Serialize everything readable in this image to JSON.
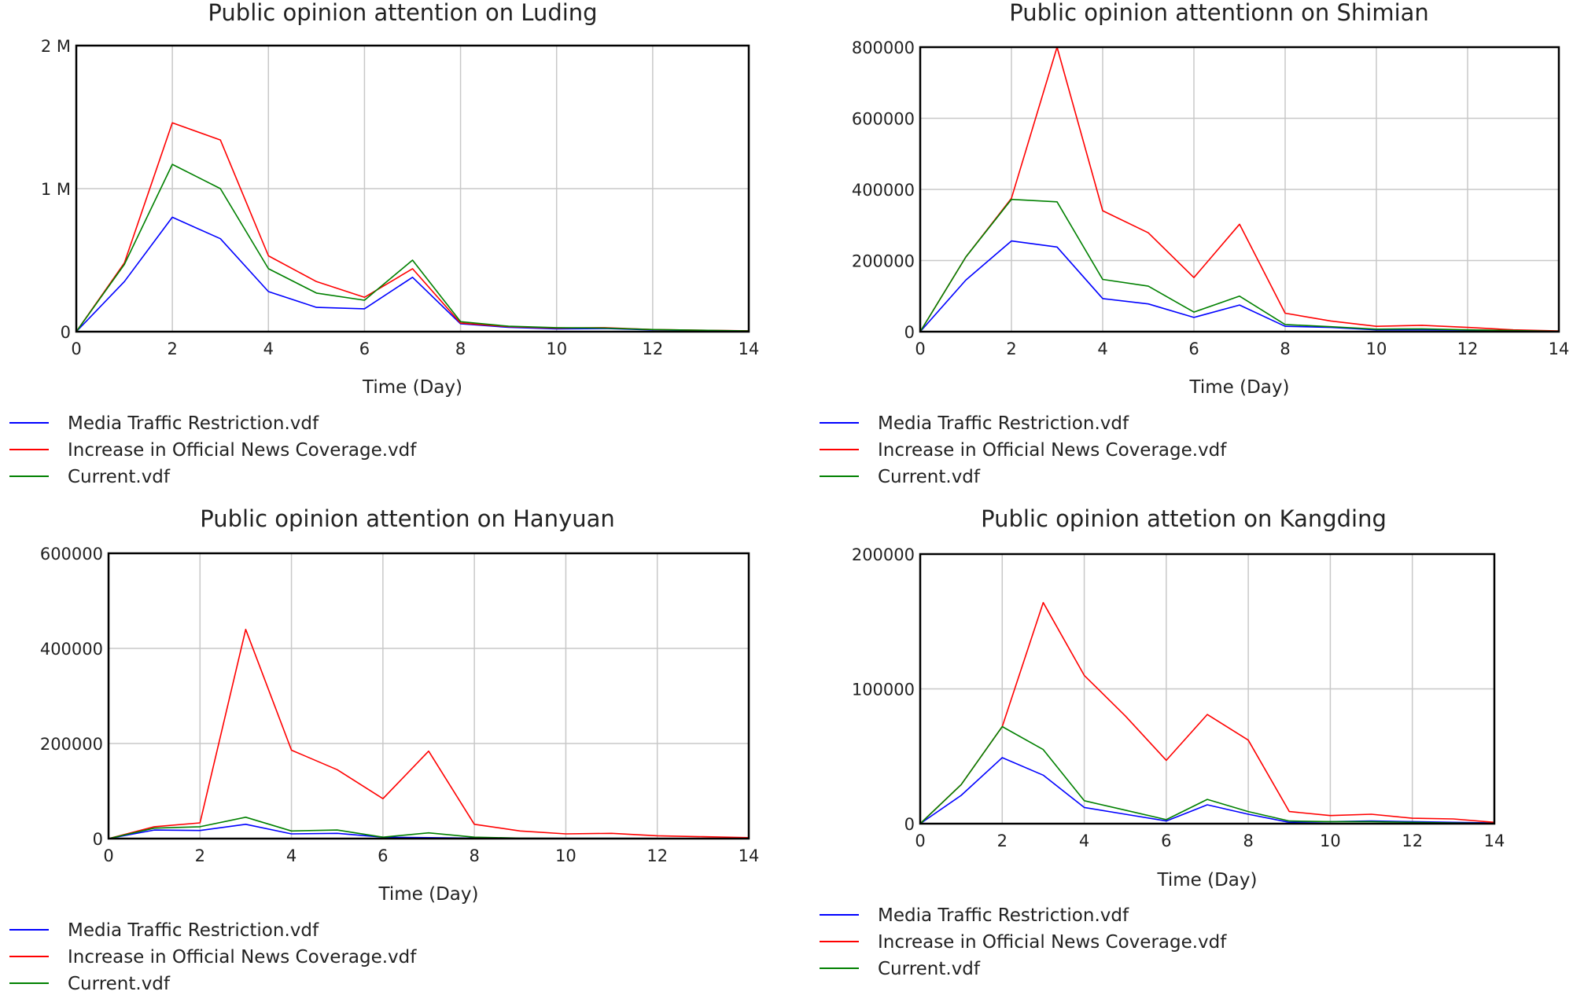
{
  "colors": {
    "media": "#0000ff",
    "news": "#ff0000",
    "current": "#008000"
  },
  "legend": {
    "items": [
      {
        "key": "media",
        "label": "Media Traffic Restriction.vdf"
      },
      {
        "key": "news",
        "label": "Increase in Official News Coverage.vdf"
      },
      {
        "key": "current",
        "label": "Current.vdf"
      }
    ]
  },
  "chart_data": [
    {
      "type": "line",
      "title": "Public opinion attention on Luding",
      "xlabel": "Time (Day)",
      "ylabel": "",
      "xlim": [
        0,
        14
      ],
      "ylim": [
        0,
        2000000
      ],
      "x_ticks": [
        0,
        2,
        4,
        6,
        8,
        10,
        12,
        14
      ],
      "y_ticks": [
        0,
        1000000,
        2000000
      ],
      "y_tick_labels": [
        "0",
        "1 M",
        "2 M"
      ],
      "x": [
        0,
        1,
        2,
        3,
        4,
        5,
        6,
        7,
        8,
        9,
        10,
        11,
        12,
        13,
        14
      ],
      "grid": true,
      "legend_position": "bottom-left",
      "series": [
        {
          "name": "Media Traffic Restriction.vdf",
          "key": "media",
          "values": [
            0,
            350000,
            800000,
            650000,
            280000,
            170000,
            160000,
            380000,
            55000,
            30000,
            20000,
            22000,
            12000,
            8000,
            4000
          ]
        },
        {
          "name": "Increase in Official News Coverage.vdf",
          "key": "news",
          "values": [
            0,
            480000,
            1460000,
            1340000,
            530000,
            350000,
            240000,
            440000,
            60000,
            35000,
            25000,
            28000,
            15000,
            10000,
            6000
          ]
        },
        {
          "name": "Current.vdf",
          "key": "current",
          "values": [
            0,
            470000,
            1170000,
            1000000,
            440000,
            270000,
            220000,
            500000,
            70000,
            38000,
            28000,
            25000,
            15000,
            10000,
            5000
          ]
        }
      ]
    },
    {
      "type": "line",
      "title": "Public opinion attentionn on Shimian",
      "xlabel": "Time (Day)",
      "ylabel": "",
      "xlim": [
        0,
        14
      ],
      "ylim": [
        0,
        800000
      ],
      "x_ticks": [
        0,
        2,
        4,
        6,
        8,
        10,
        12,
        14
      ],
      "y_ticks": [
        0,
        200000,
        400000,
        600000,
        800000
      ],
      "y_tick_labels": [
        "0",
        "200000",
        "400000",
        "600000",
        "800000"
      ],
      "x": [
        0,
        1,
        2,
        3,
        4,
        5,
        6,
        7,
        8,
        9,
        10,
        11,
        12,
        13,
        14
      ],
      "grid": true,
      "legend_position": "bottom-left",
      "series": [
        {
          "name": "Media Traffic Restriction.vdf",
          "key": "media",
          "values": [
            0,
            145000,
            255000,
            238000,
            93000,
            78000,
            40000,
            75000,
            15000,
            12000,
            5000,
            5000,
            4000,
            2000,
            1000
          ]
        },
        {
          "name": "Increase in Official News Coverage.vdf",
          "key": "news",
          "values": [
            0,
            210000,
            375000,
            800000,
            340000,
            278000,
            152000,
            302000,
            52000,
            30000,
            15000,
            18000,
            12000,
            5000,
            2000
          ]
        },
        {
          "name": "Current.vdf",
          "key": "current",
          "values": [
            0,
            210000,
            372000,
            365000,
            147000,
            128000,
            55000,
            100000,
            20000,
            14000,
            7000,
            8000,
            5000,
            3000,
            1000
          ]
        }
      ]
    },
    {
      "type": "line",
      "title": "Public opinion attention on Hanyuan",
      "xlabel": "Time (Day)",
      "ylabel": "",
      "xlim": [
        0,
        14
      ],
      "ylim": [
        0,
        600000
      ],
      "x_ticks": [
        0,
        2,
        4,
        6,
        8,
        10,
        12,
        14
      ],
      "y_ticks": [
        0,
        200000,
        400000,
        600000
      ],
      "y_tick_labels": [
        "0",
        "200000",
        "400000",
        "600000"
      ],
      "x": [
        0,
        1,
        2,
        3,
        4,
        5,
        6,
        7,
        8,
        9,
        10,
        11,
        12,
        13,
        14
      ],
      "grid": true,
      "legend_position": "bottom-left",
      "series": [
        {
          "name": "Media Traffic Restriction.vdf",
          "key": "media",
          "values": [
            0,
            18000,
            17000,
            30000,
            10000,
            11000,
            3000,
            2000,
            1000,
            500,
            500,
            500,
            300,
            200,
            100
          ]
        },
        {
          "name": "Increase in Official News Coverage.vdf",
          "key": "news",
          "values": [
            0,
            25000,
            33000,
            440000,
            186000,
            145000,
            84000,
            184000,
            30000,
            16000,
            10000,
            11000,
            6000,
            4000,
            2000
          ]
        },
        {
          "name": "Current.vdf",
          "key": "current",
          "values": [
            0,
            22000,
            25000,
            45000,
            16000,
            18000,
            3000,
            12000,
            3000,
            1000,
            500,
            500,
            300,
            200,
            100
          ]
        }
      ]
    },
    {
      "type": "line",
      "title": "Public opinion attetion on Kangding",
      "xlabel": "Time (Day)",
      "ylabel": "",
      "xlim": [
        0,
        14
      ],
      "ylim": [
        0,
        200000
      ],
      "x_ticks": [
        0,
        2,
        4,
        6,
        8,
        10,
        12,
        14
      ],
      "y_ticks": [
        0,
        100000,
        200000
      ],
      "y_tick_labels": [
        "0",
        "100000",
        "200000"
      ],
      "x": [
        0,
        1,
        2,
        3,
        4,
        5,
        6,
        7,
        8,
        9,
        10,
        11,
        12,
        13,
        14
      ],
      "grid": true,
      "legend_position": "bottom-left",
      "series": [
        {
          "name": "Media Traffic Restriction.vdf",
          "key": "media",
          "values": [
            0,
            21000,
            49000,
            36000,
            12000,
            7000,
            2000,
            14000,
            7000,
            1000,
            1500,
            2000,
            1500,
            1000,
            500
          ]
        },
        {
          "name": "Increase in Official News Coverage.vdf",
          "key": "news",
          "values": [
            0,
            29000,
            72000,
            164000,
            110000,
            80000,
            47000,
            81000,
            62000,
            9000,
            6000,
            7000,
            4000,
            3500,
            1000
          ]
        },
        {
          "name": "Current.vdf",
          "key": "current",
          "values": [
            0,
            29000,
            72000,
            55000,
            17000,
            10000,
            3000,
            18000,
            9000,
            2000,
            1500,
            1500,
            1000,
            500,
            200
          ]
        }
      ]
    }
  ]
}
